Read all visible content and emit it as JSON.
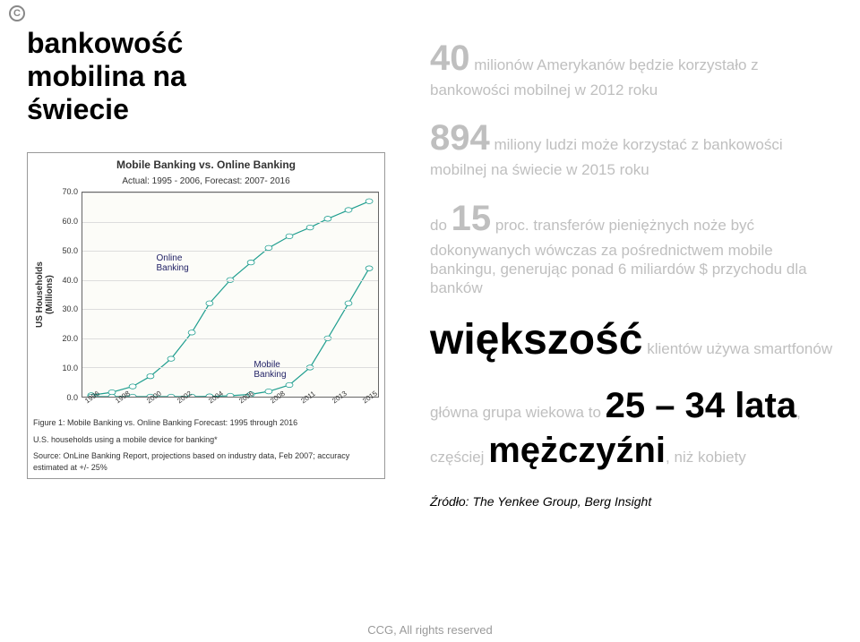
{
  "logo_letter": "C",
  "title_lines": [
    "bankowość",
    "mobilina na",
    "świecie"
  ],
  "chart": {
    "type": "line",
    "title": "Mobile Banking vs. Online Banking",
    "subtitle": "Actual: 1995 - 2006, Forecast: 2007- 2016",
    "ylabel": "US Households\n(Millions)",
    "ylim": [
      0,
      70
    ],
    "ytick_step": 10,
    "ytick_labels": [
      "0.0",
      "10.0",
      "20.0",
      "30.0",
      "40.0",
      "50.0",
      "60.0",
      "70.0"
    ],
    "x_labels": [
      "1996",
      "1998",
      "2000",
      "2002",
      "2004",
      "2006",
      "2008",
      "2011",
      "2013",
      "2015"
    ],
    "background": "#fcfcf8",
    "grid_color": "#dddddd",
    "border_color": "#666666",
    "series": [
      {
        "name": "Online Banking",
        "label": "Online\nBanking",
        "label_pos": {
          "x": 0.25,
          "y": 0.3
        },
        "color": "#1f9e8f",
        "marker_fill": "#ffffff",
        "points": [
          [
            0.03,
            0.5
          ],
          [
            0.1,
            1.5
          ],
          [
            0.17,
            3.5
          ],
          [
            0.23,
            7
          ],
          [
            0.3,
            13
          ],
          [
            0.37,
            22
          ],
          [
            0.43,
            32
          ],
          [
            0.5,
            40
          ],
          [
            0.57,
            46
          ],
          [
            0.63,
            51
          ],
          [
            0.7,
            55
          ],
          [
            0.77,
            58
          ],
          [
            0.83,
            61
          ],
          [
            0.9,
            64
          ],
          [
            0.97,
            67
          ]
        ]
      },
      {
        "name": "Mobile Banking",
        "label": "Mobile\nBanking",
        "label_pos": {
          "x": 0.58,
          "y": 0.82
        },
        "color": "#1f9e8f",
        "marker_fill": "#ffffff",
        "points": [
          [
            0.03,
            0
          ],
          [
            0.1,
            0
          ],
          [
            0.17,
            0
          ],
          [
            0.23,
            0
          ],
          [
            0.3,
            0
          ],
          [
            0.37,
            0
          ],
          [
            0.43,
            0.1
          ],
          [
            0.5,
            0.3
          ],
          [
            0.57,
            0.8
          ],
          [
            0.63,
            1.8
          ],
          [
            0.7,
            4
          ],
          [
            0.77,
            10
          ],
          [
            0.83,
            20
          ],
          [
            0.9,
            32
          ],
          [
            0.97,
            44
          ]
        ]
      }
    ],
    "caption_lines": [
      "Figure 1: Mobile Banking vs. Online Banking Forecast: 1995 through 2016",
      "U.S. households using a mobile device for banking*",
      "Source: OnLine Banking Report, projections based on industry data, Feb 2007; accuracy estimated at +/- 25%"
    ]
  },
  "stats": [
    {
      "big": "40",
      "rest": " milionów Amerykanów będzie korzystało z bankowości mobilnej w 2012 roku"
    },
    {
      "big": "894",
      "rest": " miliony ludzi może korzystać z bankowości mobilnej na świecie w 2015 roku"
    },
    {
      "pre": "do ",
      "big": "15",
      "mid": " proc.",
      "rest": " transferów pieniężnych noże być dokonywanych wówczas za pośrednictwem mobile bankingu, generując ponad 6 miliardów $ przychodu dla banków"
    }
  ],
  "majority": {
    "big": "większość",
    "rest": " klientów używa smartfonów"
  },
  "age": {
    "pre": "główna grupa wiekowa to ",
    "big": "25 – 34 lata",
    "mid": ", częściej ",
    "big2": "mężczyźni",
    "post": ", niż kobiety"
  },
  "source_label": "Źródło: The Yenkee Group, Berg Insight",
  "footer": "CCG, All rights reserved"
}
